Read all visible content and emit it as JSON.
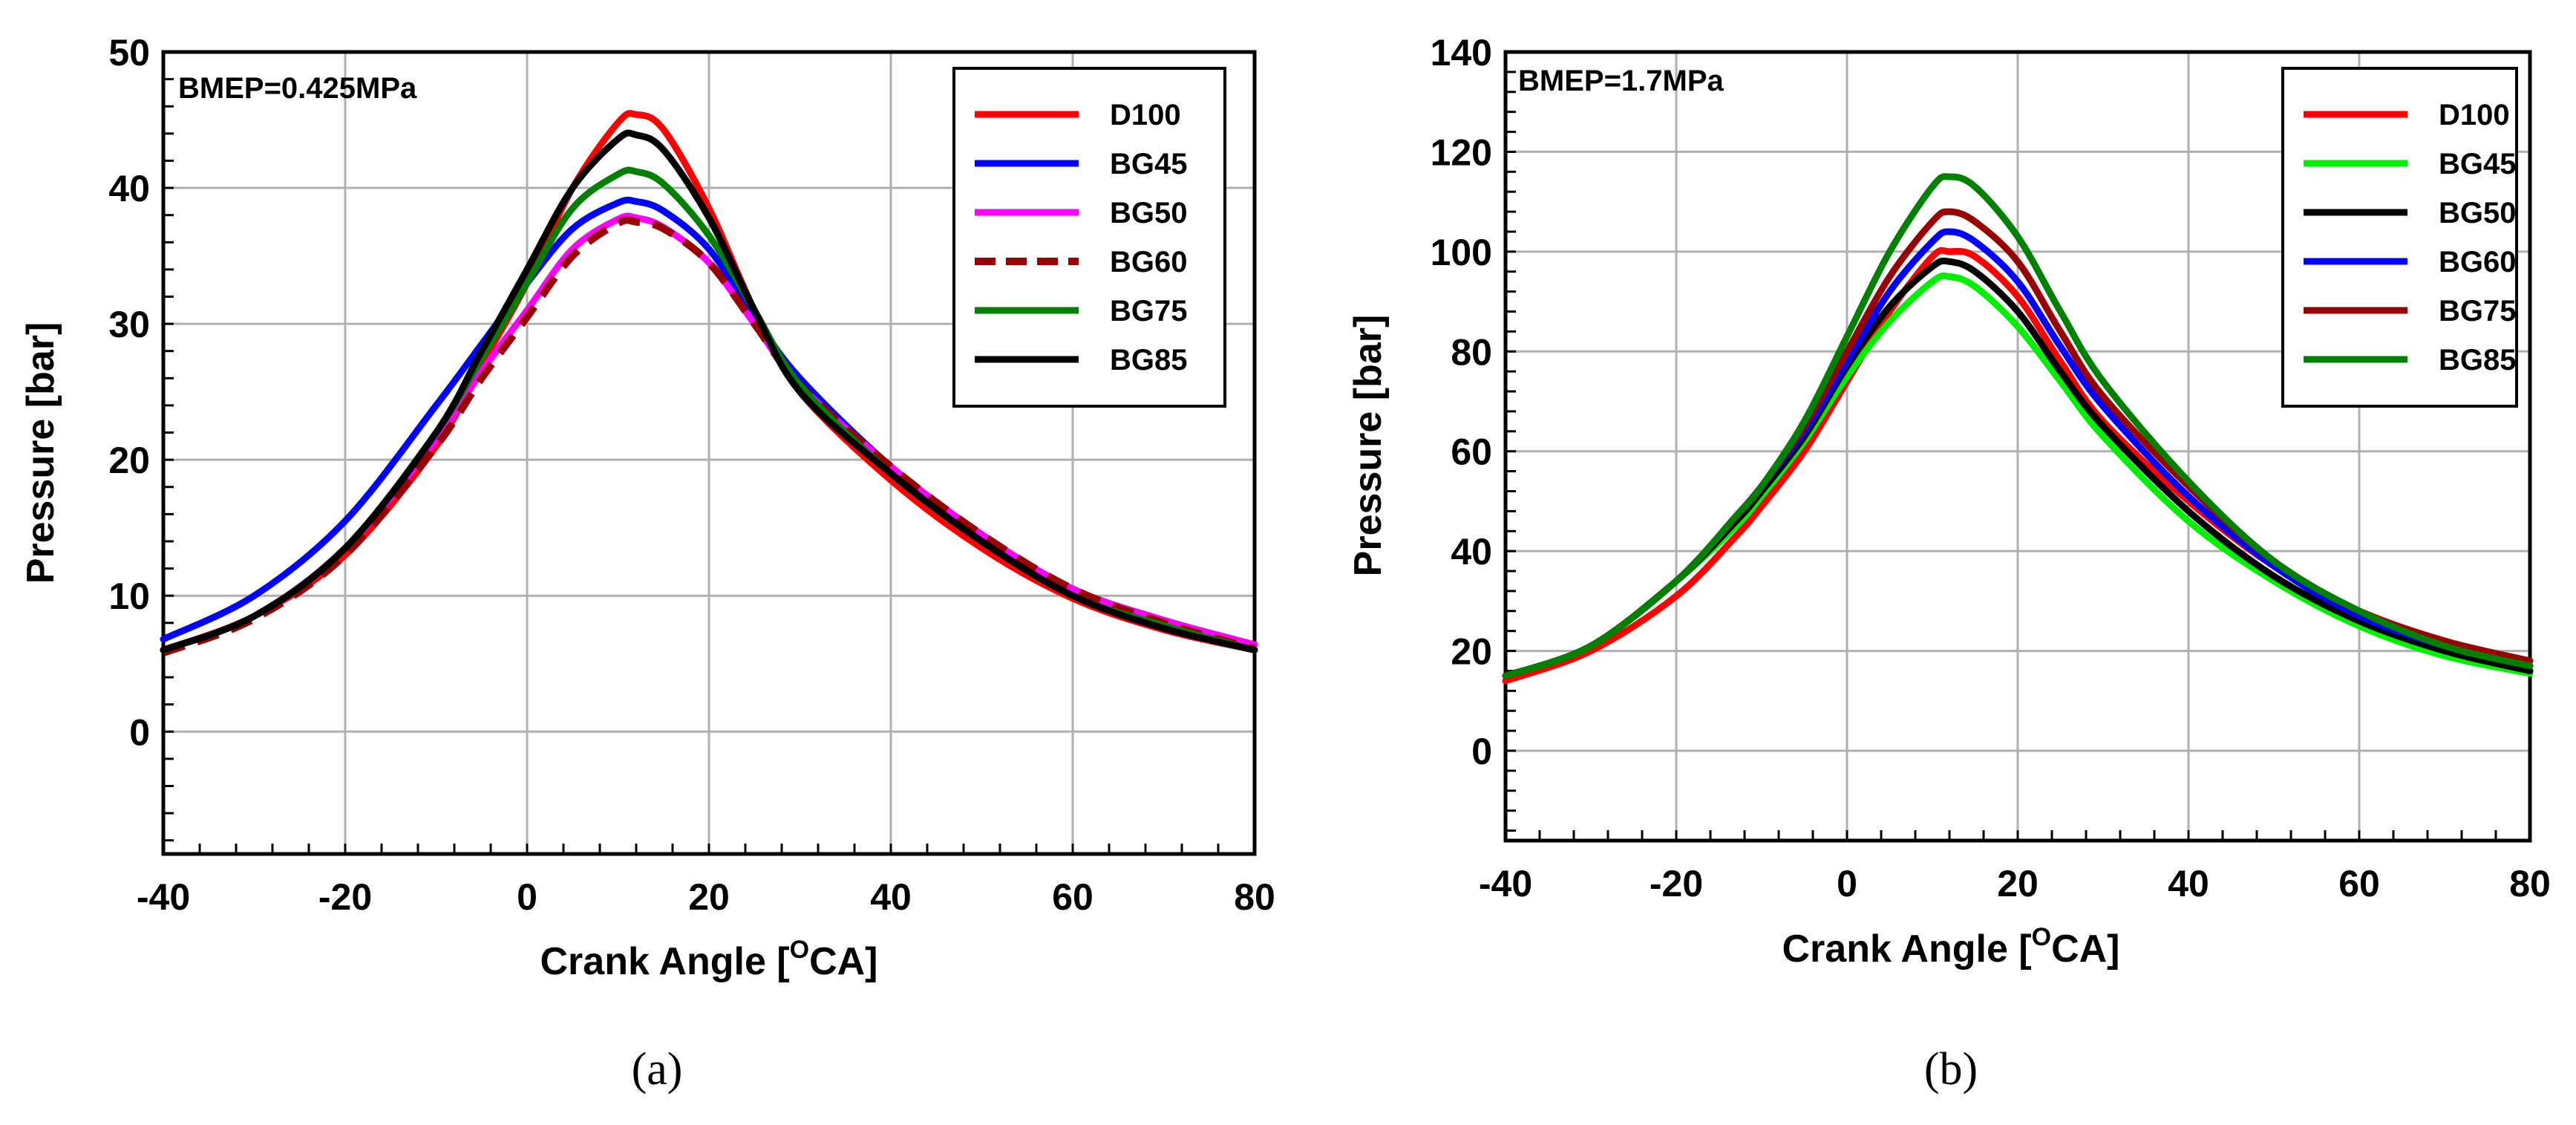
{
  "chart_data": [
    {
      "type": "line",
      "panel_caption": "(a)",
      "annotation": "BMEP=0.425MPa",
      "xlabel": "Crank Angle [",
      "xlabel_sup": "O",
      "xlabel_tail": "CA]",
      "ylabel": "Pressure [bar]",
      "xlim": [
        -40,
        80
      ],
      "ylim": [
        -9,
        50
      ],
      "xticks": [
        -40,
        -20,
        0,
        20,
        40,
        60,
        80
      ],
      "yticks": [
        0,
        10,
        20,
        30,
        40,
        50
      ],
      "grid": true,
      "legend_position": "top-right",
      "series": [
        {
          "name": "D100",
          "color": "#ff0000",
          "dash": false,
          "x": [
            -40,
            -30,
            -20,
            -10,
            -5,
            0,
            5,
            10,
            12,
            15,
            20,
            25,
            30,
            40,
            50,
            60,
            70,
            80
          ],
          "y": [
            6,
            8.5,
            13,
            21,
            27,
            33,
            40,
            44.8,
            45.4,
            44.3,
            38.5,
            31,
            25,
            18.5,
            13.5,
            9.8,
            7.5,
            6
          ]
        },
        {
          "name": "BG45",
          "color": "#0000ff",
          "dash": false,
          "x": [
            -40,
            -30,
            -20,
            -10,
            -5,
            0,
            5,
            10,
            12,
            15,
            20,
            25,
            30,
            40,
            50,
            60,
            70,
            80
          ],
          "y": [
            6.8,
            10,
            15.5,
            24,
            28.5,
            33,
            37,
            38.9,
            39,
            38.3,
            35.5,
            30.5,
            26,
            19.5,
            14.5,
            10.5,
            8.2,
            6.4
          ]
        },
        {
          "name": "BG50",
          "color": "#ff00ff",
          "dash": false,
          "x": [
            -40,
            -30,
            -20,
            -10,
            -5,
            0,
            5,
            10,
            12,
            15,
            20,
            25,
            30,
            40,
            50,
            60,
            70,
            80
          ],
          "y": [
            6,
            8.5,
            13.5,
            21.5,
            26.5,
            31,
            35.5,
            37.7,
            37.8,
            37.1,
            34.5,
            30,
            25.5,
            19.5,
            14.5,
            10.5,
            8.2,
            6.4
          ]
        },
        {
          "name": "BG60",
          "color": "#990000",
          "dash": true,
          "x": [
            -40,
            -30,
            -20,
            -10,
            -5,
            0,
            5,
            10,
            12,
            15,
            20,
            25,
            30,
            40,
            50,
            60,
            70,
            80
          ],
          "y": [
            5.8,
            8.3,
            13,
            21,
            26,
            30.5,
            35,
            37.4,
            37.5,
            37,
            34.5,
            30,
            25.5,
            19.5,
            14.5,
            10.5,
            8,
            6.1
          ]
        },
        {
          "name": "BG75",
          "color": "#008000",
          "dash": false,
          "x": [
            -40,
            -30,
            -20,
            -10,
            -5,
            0,
            5,
            10,
            12,
            15,
            20,
            25,
            30,
            40,
            50,
            60,
            70,
            80
          ],
          "y": [
            6,
            8.5,
            13.5,
            22,
            27.5,
            33,
            38.5,
            41,
            41.2,
            40.3,
            36.5,
            31,
            25.5,
            19,
            14,
            10,
            7.8,
            6
          ]
        },
        {
          "name": "BG85",
          "color": "#000000",
          "dash": false,
          "x": [
            -40,
            -30,
            -20,
            -10,
            -5,
            0,
            5,
            10,
            12,
            15,
            20,
            25,
            30,
            40,
            50,
            60,
            70,
            80
          ],
          "y": [
            6,
            8.5,
            13.5,
            22,
            28,
            34,
            40,
            43.6,
            43.9,
            42.8,
            37.8,
            31,
            25,
            19,
            14,
            10,
            7.6,
            6
          ]
        }
      ]
    },
    {
      "type": "line",
      "panel_caption": "(b)",
      "annotation": "BMEP=1.7MPa",
      "xlabel": "Crank Angle [",
      "xlabel_sup": "O",
      "xlabel_tail": "CA]",
      "ylabel": "Pressure [bar]",
      "xlim": [
        -40,
        80
      ],
      "ylim": [
        -18,
        140
      ],
      "xticks": [
        -40,
        -20,
        0,
        20,
        40,
        60,
        80
      ],
      "yticks": [
        0,
        20,
        40,
        60,
        80,
        100,
        120,
        140
      ],
      "grid": true,
      "legend_position": "top-right",
      "series": [
        {
          "name": "D100",
          "color": "#ff0000",
          "dash": false,
          "x": [
            -40,
            -30,
            -20,
            -13,
            -10,
            -5,
            0,
            5,
            10,
            12,
            15,
            20,
            25,
            30,
            40,
            50,
            60,
            70,
            80
          ],
          "y": [
            14,
            20,
            31,
            43,
            49,
            60,
            74,
            88,
            99,
            100,
            99,
            91,
            78,
            66,
            50,
            37,
            28,
            22,
            18
          ]
        },
        {
          "name": "BG45",
          "color": "#00ee00",
          "dash": false,
          "x": [
            -40,
            -30,
            -20,
            -13,
            -10,
            -5,
            0,
            5,
            10,
            12,
            15,
            20,
            25,
            30,
            40,
            50,
            60,
            70,
            80
          ],
          "y": [
            15,
            21,
            34,
            45,
            51,
            62,
            75,
            86,
            94,
            95,
            93,
            85,
            74,
            63,
            46,
            34,
            25,
            19,
            15.5
          ]
        },
        {
          "name": "BG50",
          "color": "#000000",
          "dash": false,
          "x": [
            -40,
            -30,
            -20,
            -13,
            -10,
            -5,
            0,
            5,
            10,
            12,
            15,
            20,
            25,
            30,
            40,
            50,
            60,
            70,
            80
          ],
          "y": [
            15,
            21,
            34,
            46,
            52,
            63,
            77,
            89,
            97,
            98,
            96,
            88,
            76,
            65,
            48,
            35,
            26,
            20,
            16
          ]
        },
        {
          "name": "BG60",
          "color": "#0000ff",
          "dash": false,
          "x": [
            -40,
            -30,
            -20,
            -13,
            -10,
            -5,
            0,
            5,
            10,
            12,
            15,
            20,
            25,
            30,
            40,
            50,
            60,
            70,
            80
          ],
          "y": [
            15,
            21,
            34,
            47,
            53,
            64,
            78,
            92,
            102,
            104,
            102,
            94,
            81,
            69,
            51,
            37,
            27,
            21,
            17
          ]
        },
        {
          "name": "BG75",
          "color": "#990000",
          "dash": false,
          "x": [
            -40,
            -30,
            -20,
            -13,
            -10,
            -5,
            0,
            5,
            10,
            12,
            15,
            20,
            25,
            30,
            40,
            50,
            60,
            70,
            80
          ],
          "y": [
            15,
            21,
            34,
            47,
            53,
            65,
            80,
            95,
            106,
            108,
            106,
            98,
            84,
            71,
            53,
            38,
            28,
            22,
            18
          ]
        },
        {
          "name": "BG85",
          "color": "#008000",
          "dash": false,
          "x": [
            -40,
            -30,
            -20,
            -13,
            -10,
            -5,
            0,
            5,
            10,
            12,
            15,
            20,
            25,
            30,
            40,
            50,
            60,
            70,
            80
          ],
          "y": [
            15,
            21,
            34,
            47,
            53,
            66,
            83,
            100,
            113,
            115,
            113,
            103,
            88,
            74,
            54,
            38,
            28,
            21,
            17
          ]
        }
      ]
    }
  ]
}
